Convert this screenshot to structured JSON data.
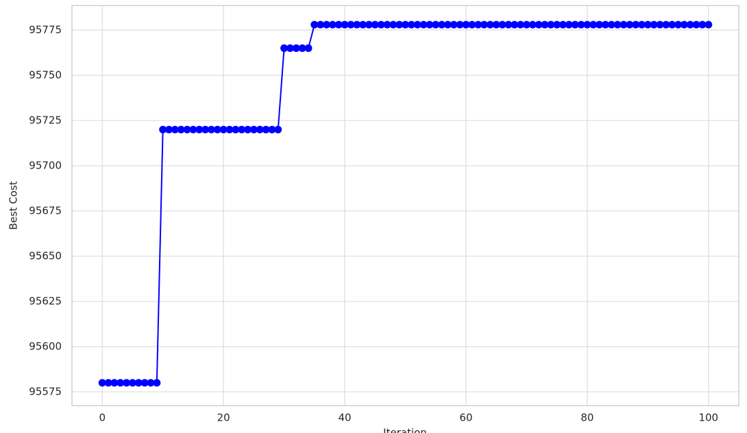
{
  "chart_data": {
    "type": "line",
    "xlabel": "Iteration",
    "ylabel": "Best Cost",
    "x": [
      0,
      1,
      2,
      3,
      4,
      5,
      6,
      7,
      8,
      9,
      10,
      11,
      12,
      13,
      14,
      15,
      16,
      17,
      18,
      19,
      20,
      21,
      22,
      23,
      24,
      25,
      26,
      27,
      28,
      29,
      30,
      31,
      32,
      33,
      34,
      35,
      36,
      37,
      38,
      39,
      40,
      41,
      42,
      43,
      44,
      45,
      46,
      47,
      48,
      49,
      50,
      51,
      52,
      53,
      54,
      55,
      56,
      57,
      58,
      59,
      60,
      61,
      62,
      63,
      64,
      65,
      66,
      67,
      68,
      69,
      70,
      71,
      72,
      73,
      74,
      75,
      76,
      77,
      78,
      79,
      80,
      81,
      82,
      83,
      84,
      85,
      86,
      87,
      88,
      89,
      90,
      91,
      92,
      93,
      94,
      95,
      96,
      97,
      98,
      99,
      100
    ],
    "series": [
      {
        "color": "#0000ff",
        "values": [
          95580,
          95580,
          95580,
          95580,
          95580,
          95580,
          95580,
          95580,
          95580,
          95580,
          95720,
          95720,
          95720,
          95720,
          95720,
          95720,
          95720,
          95720,
          95720,
          95720,
          95720,
          95720,
          95720,
          95720,
          95720,
          95720,
          95720,
          95720,
          95720,
          95720,
          95765,
          95765,
          95765,
          95765,
          95765,
          95778,
          95778,
          95778,
          95778,
          95778,
          95778,
          95778,
          95778,
          95778,
          95778,
          95778,
          95778,
          95778,
          95778,
          95778,
          95778,
          95778,
          95778,
          95778,
          95778,
          95778,
          95778,
          95778,
          95778,
          95778,
          95778,
          95778,
          95778,
          95778,
          95778,
          95778,
          95778,
          95778,
          95778,
          95778,
          95778,
          95778,
          95778,
          95778,
          95778,
          95778,
          95778,
          95778,
          95778,
          95778,
          95778,
          95778,
          95778,
          95778,
          95778,
          95778,
          95778,
          95778,
          95778,
          95778,
          95778,
          95778,
          95778,
          95778,
          95778,
          95778,
          95778,
          95778,
          95778,
          95778,
          95778
        ]
      }
    ],
    "xlim": [
      -5,
      105
    ],
    "xticks": [
      0,
      20,
      40,
      60,
      80,
      100
    ],
    "ylim": [
      95567.4,
      95788.6
    ],
    "yticks": [
      95575,
      95600,
      95625,
      95650,
      95675,
      95700,
      95725,
      95750,
      95775
    ],
    "grid": true
  }
}
